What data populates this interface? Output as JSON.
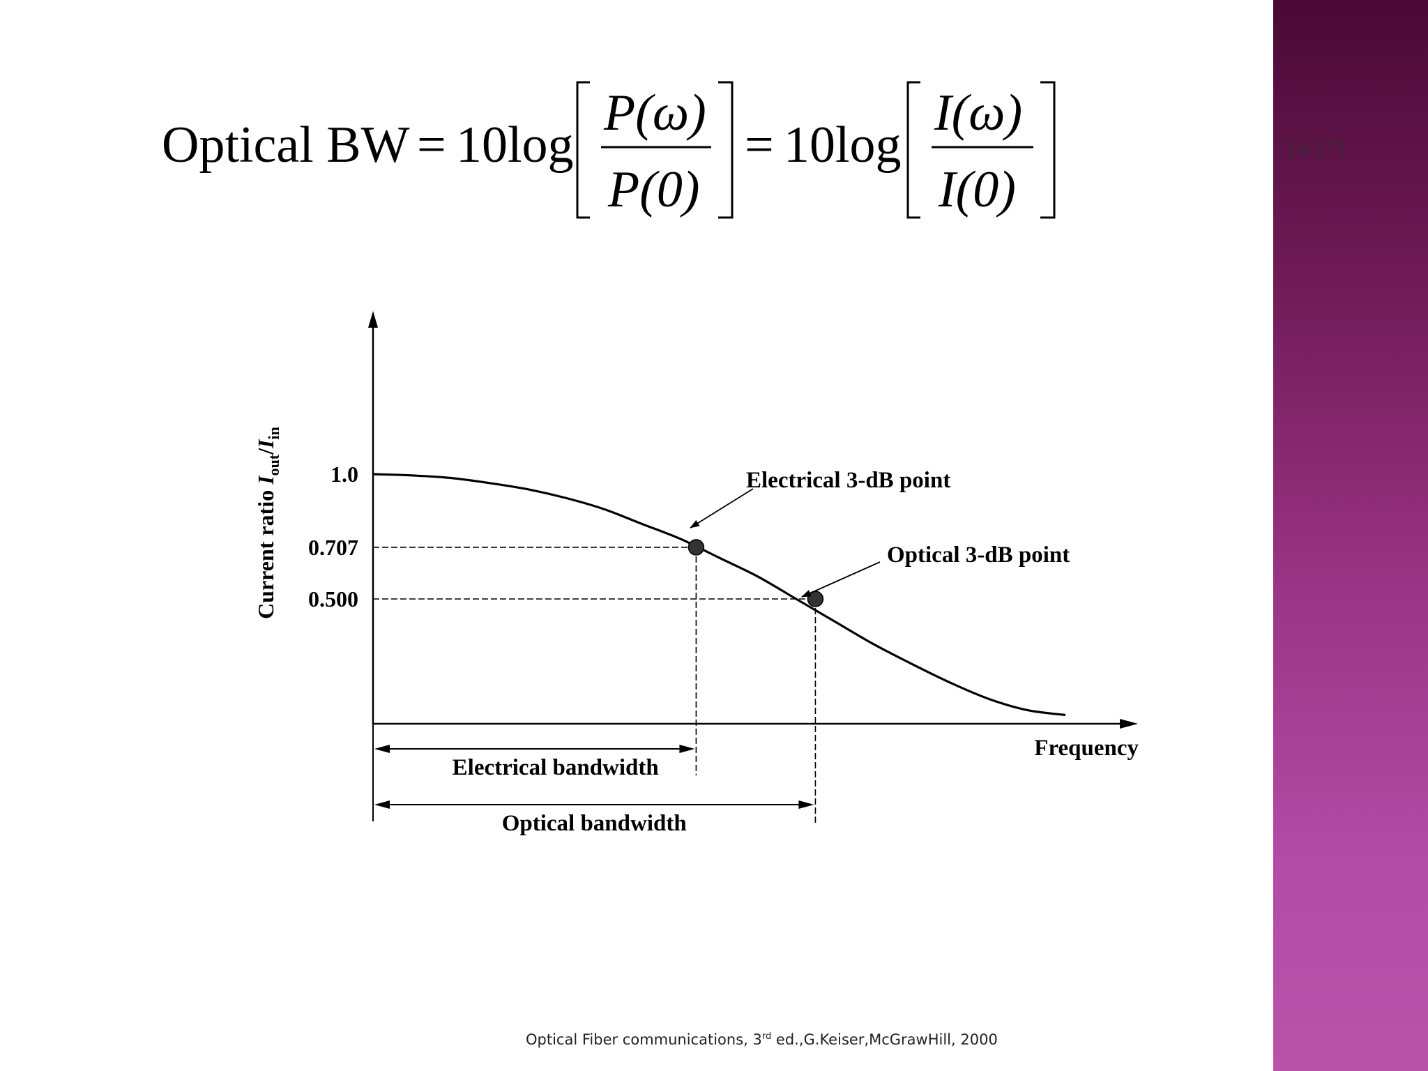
{
  "equation": {
    "lhs": "Optical BW",
    "coef": "10",
    "log": "log",
    "frac1_num": "P(ω)",
    "frac1_den": "P(0)",
    "frac2_num": "I(ω)",
    "frac2_den": "I(0)",
    "ref": "[4-17]"
  },
  "chart_data": {
    "type": "line",
    "ylabel_text": "Current ratio ",
    "ylabel_var": "I",
    "ylabel_sub1": "out",
    "ylabel_mid": "/",
    "ylabel_var2": "I",
    "ylabel_sub2": "in",
    "xlabel": "Frequency",
    "yticks": [
      "1.0",
      "0.707",
      "0.500"
    ],
    "ytick_values": [
      1.0,
      0.707,
      0.5
    ],
    "ylim": [
      0,
      1.0
    ],
    "curve": {
      "x": [
        0.0,
        0.05,
        0.1,
        0.15,
        0.2,
        0.25,
        0.3,
        0.35,
        0.4,
        0.45,
        0.5,
        0.55,
        0.6,
        0.65,
        0.7,
        0.75,
        0.8,
        0.85,
        0.9
      ],
      "y": [
        1.0,
        0.995,
        0.985,
        0.965,
        0.94,
        0.905,
        0.86,
        0.8,
        0.74,
        0.665,
        0.59,
        0.5,
        0.41,
        0.32,
        0.24,
        0.165,
        0.1,
        0.055,
        0.035
      ]
    },
    "points": [
      {
        "label": "Electrical 3-dB point",
        "x": 0.42,
        "y": 0.707
      },
      {
        "label": "Optical 3-dB point",
        "x": 0.575,
        "y": 0.5
      }
    ],
    "bands": [
      {
        "label": "Electrical bandwidth",
        "from": 0,
        "to": 0.42
      },
      {
        "label": "Optical bandwidth",
        "from": 0,
        "to": 0.575
      }
    ]
  },
  "citation": {
    "before": "Optical Fiber communications, 3",
    "sup": "rd",
    "after": " ed.,G.Keiser,McGrawHill, 2000"
  }
}
